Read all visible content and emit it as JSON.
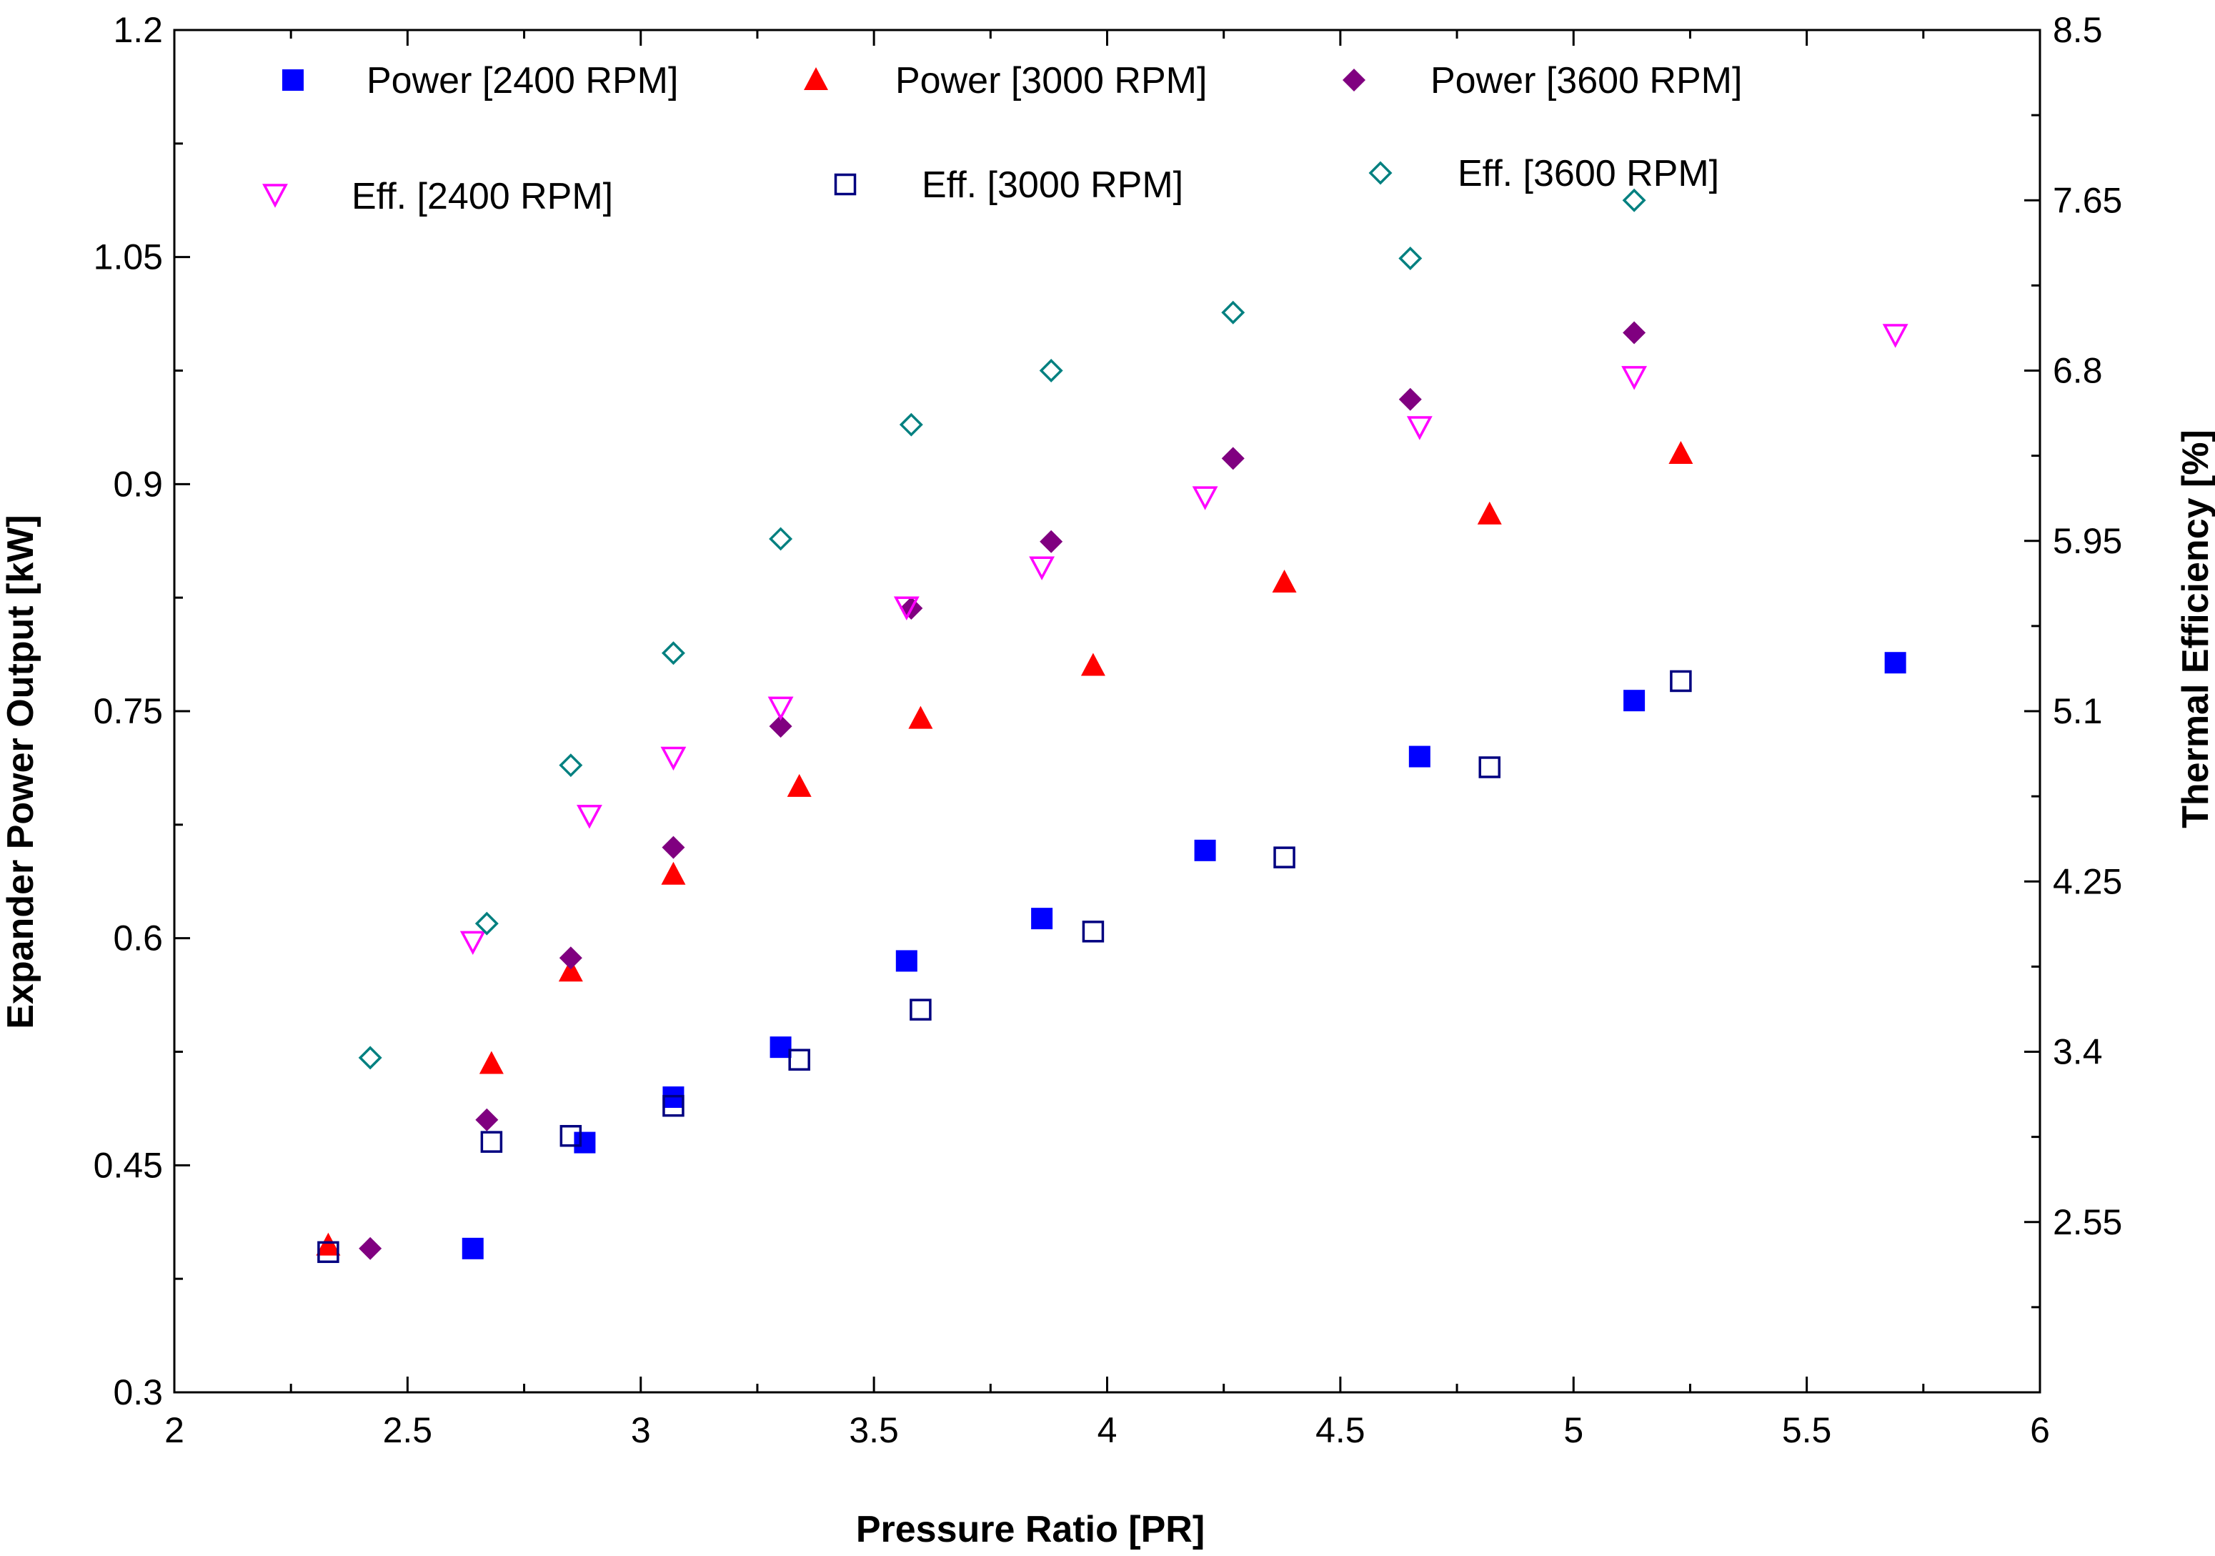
{
  "chart_data": {
    "type": "scatter",
    "title": "",
    "xlabel": "Pressure Ratio [PR]",
    "ylabel": "Expander Power Output [kW]",
    "y2label": "Thermal Efficiency [%]",
    "xlim": [
      2,
      6
    ],
    "ylim": [
      0.3,
      1.2
    ],
    "y2lim": [
      1.7,
      8.5
    ],
    "xticks": [
      2,
      2.5,
      3,
      3.5,
      4,
      4.5,
      5,
      5.5,
      6
    ],
    "xtick_labels": [
      "2",
      "2.5",
      "3",
      "3.5",
      "4",
      "4.5",
      "5",
      "5.5",
      "6"
    ],
    "yticks": [
      0.3,
      0.45,
      0.6,
      0.75,
      0.9,
      1.05,
      1.2
    ],
    "ytick_labels": [
      "0.3",
      "0.45",
      "0.6",
      "0.75",
      "0.9",
      "1.05",
      "1.2"
    ],
    "y2ticks": [
      2.55,
      3.4,
      4.25,
      5.1,
      5.95,
      6.8,
      7.65,
      8.5
    ],
    "y2tick_labels": [
      "2.55",
      "3.4",
      "4.25",
      "5.1",
      "5.95",
      "6.8",
      "7.65",
      "8.5"
    ],
    "grid": false,
    "legend_position": "top",
    "series": [
      {
        "name": "Power [2400 RPM]",
        "axis": "left",
        "marker": "square-filled",
        "color": "#0000FF",
        "x": [
          2.64,
          2.88,
          3.07,
          3.3,
          3.57,
          3.86,
          4.21,
          4.67,
          5.13,
          5.69
        ],
        "y": [
          0.395,
          0.465,
          0.495,
          0.528,
          0.585,
          0.613,
          0.658,
          0.72,
          0.757,
          0.782
        ]
      },
      {
        "name": "Power [3000 RPM]",
        "axis": "left",
        "marker": "triangle-up-filled",
        "color": "#FF0000",
        "x": [
          2.33,
          2.68,
          2.85,
          3.07,
          3.34,
          3.6,
          3.97,
          4.38,
          4.82,
          5.23
        ],
        "y": [
          0.397,
          0.517,
          0.578,
          0.642,
          0.7,
          0.745,
          0.78,
          0.835,
          0.88,
          0.92
        ]
      },
      {
        "name": "Power [3600 RPM]",
        "axis": "left",
        "marker": "diamond-filled",
        "color": "#800080",
        "x": [
          2.42,
          2.67,
          2.85,
          3.07,
          3.3,
          3.58,
          3.88,
          4.27,
          4.65,
          5.13
        ],
        "y": [
          0.395,
          0.48,
          0.587,
          0.66,
          0.74,
          0.818,
          0.862,
          0.917,
          0.956,
          1.0
        ]
      },
      {
        "name": "Eff. [2400 RPM]",
        "axis": "right",
        "marker": "triangle-down-open",
        "color": "#FF00FF",
        "x": [
          2.64,
          2.89,
          3.07,
          3.3,
          3.57,
          3.86,
          4.21,
          4.67,
          5.13,
          5.69
        ],
        "y": [
          3.95,
          4.58,
          4.87,
          5.12,
          5.62,
          5.82,
          6.17,
          6.52,
          6.77,
          6.98
        ]
      },
      {
        "name": "Eff. [3000 RPM]",
        "axis": "right",
        "marker": "square-open",
        "color": "#000080",
        "x": [
          2.33,
          2.68,
          2.85,
          3.07,
          3.34,
          3.6,
          3.97,
          4.38,
          4.82,
          5.23
        ],
        "y": [
          2.4,
          2.95,
          2.98,
          3.13,
          3.36,
          3.61,
          4.0,
          4.37,
          4.82,
          5.25
        ]
      },
      {
        "name": "Eff. [3600 RPM]",
        "axis": "right",
        "marker": "diamond-open",
        "color": "#008080",
        "x": [
          2.42,
          2.67,
          2.85,
          3.07,
          3.3,
          3.58,
          3.88,
          4.27,
          4.65,
          5.13
        ],
        "y": [
          3.37,
          4.04,
          4.83,
          5.39,
          5.96,
          6.53,
          6.8,
          7.09,
          7.36,
          7.65
        ]
      }
    ]
  }
}
